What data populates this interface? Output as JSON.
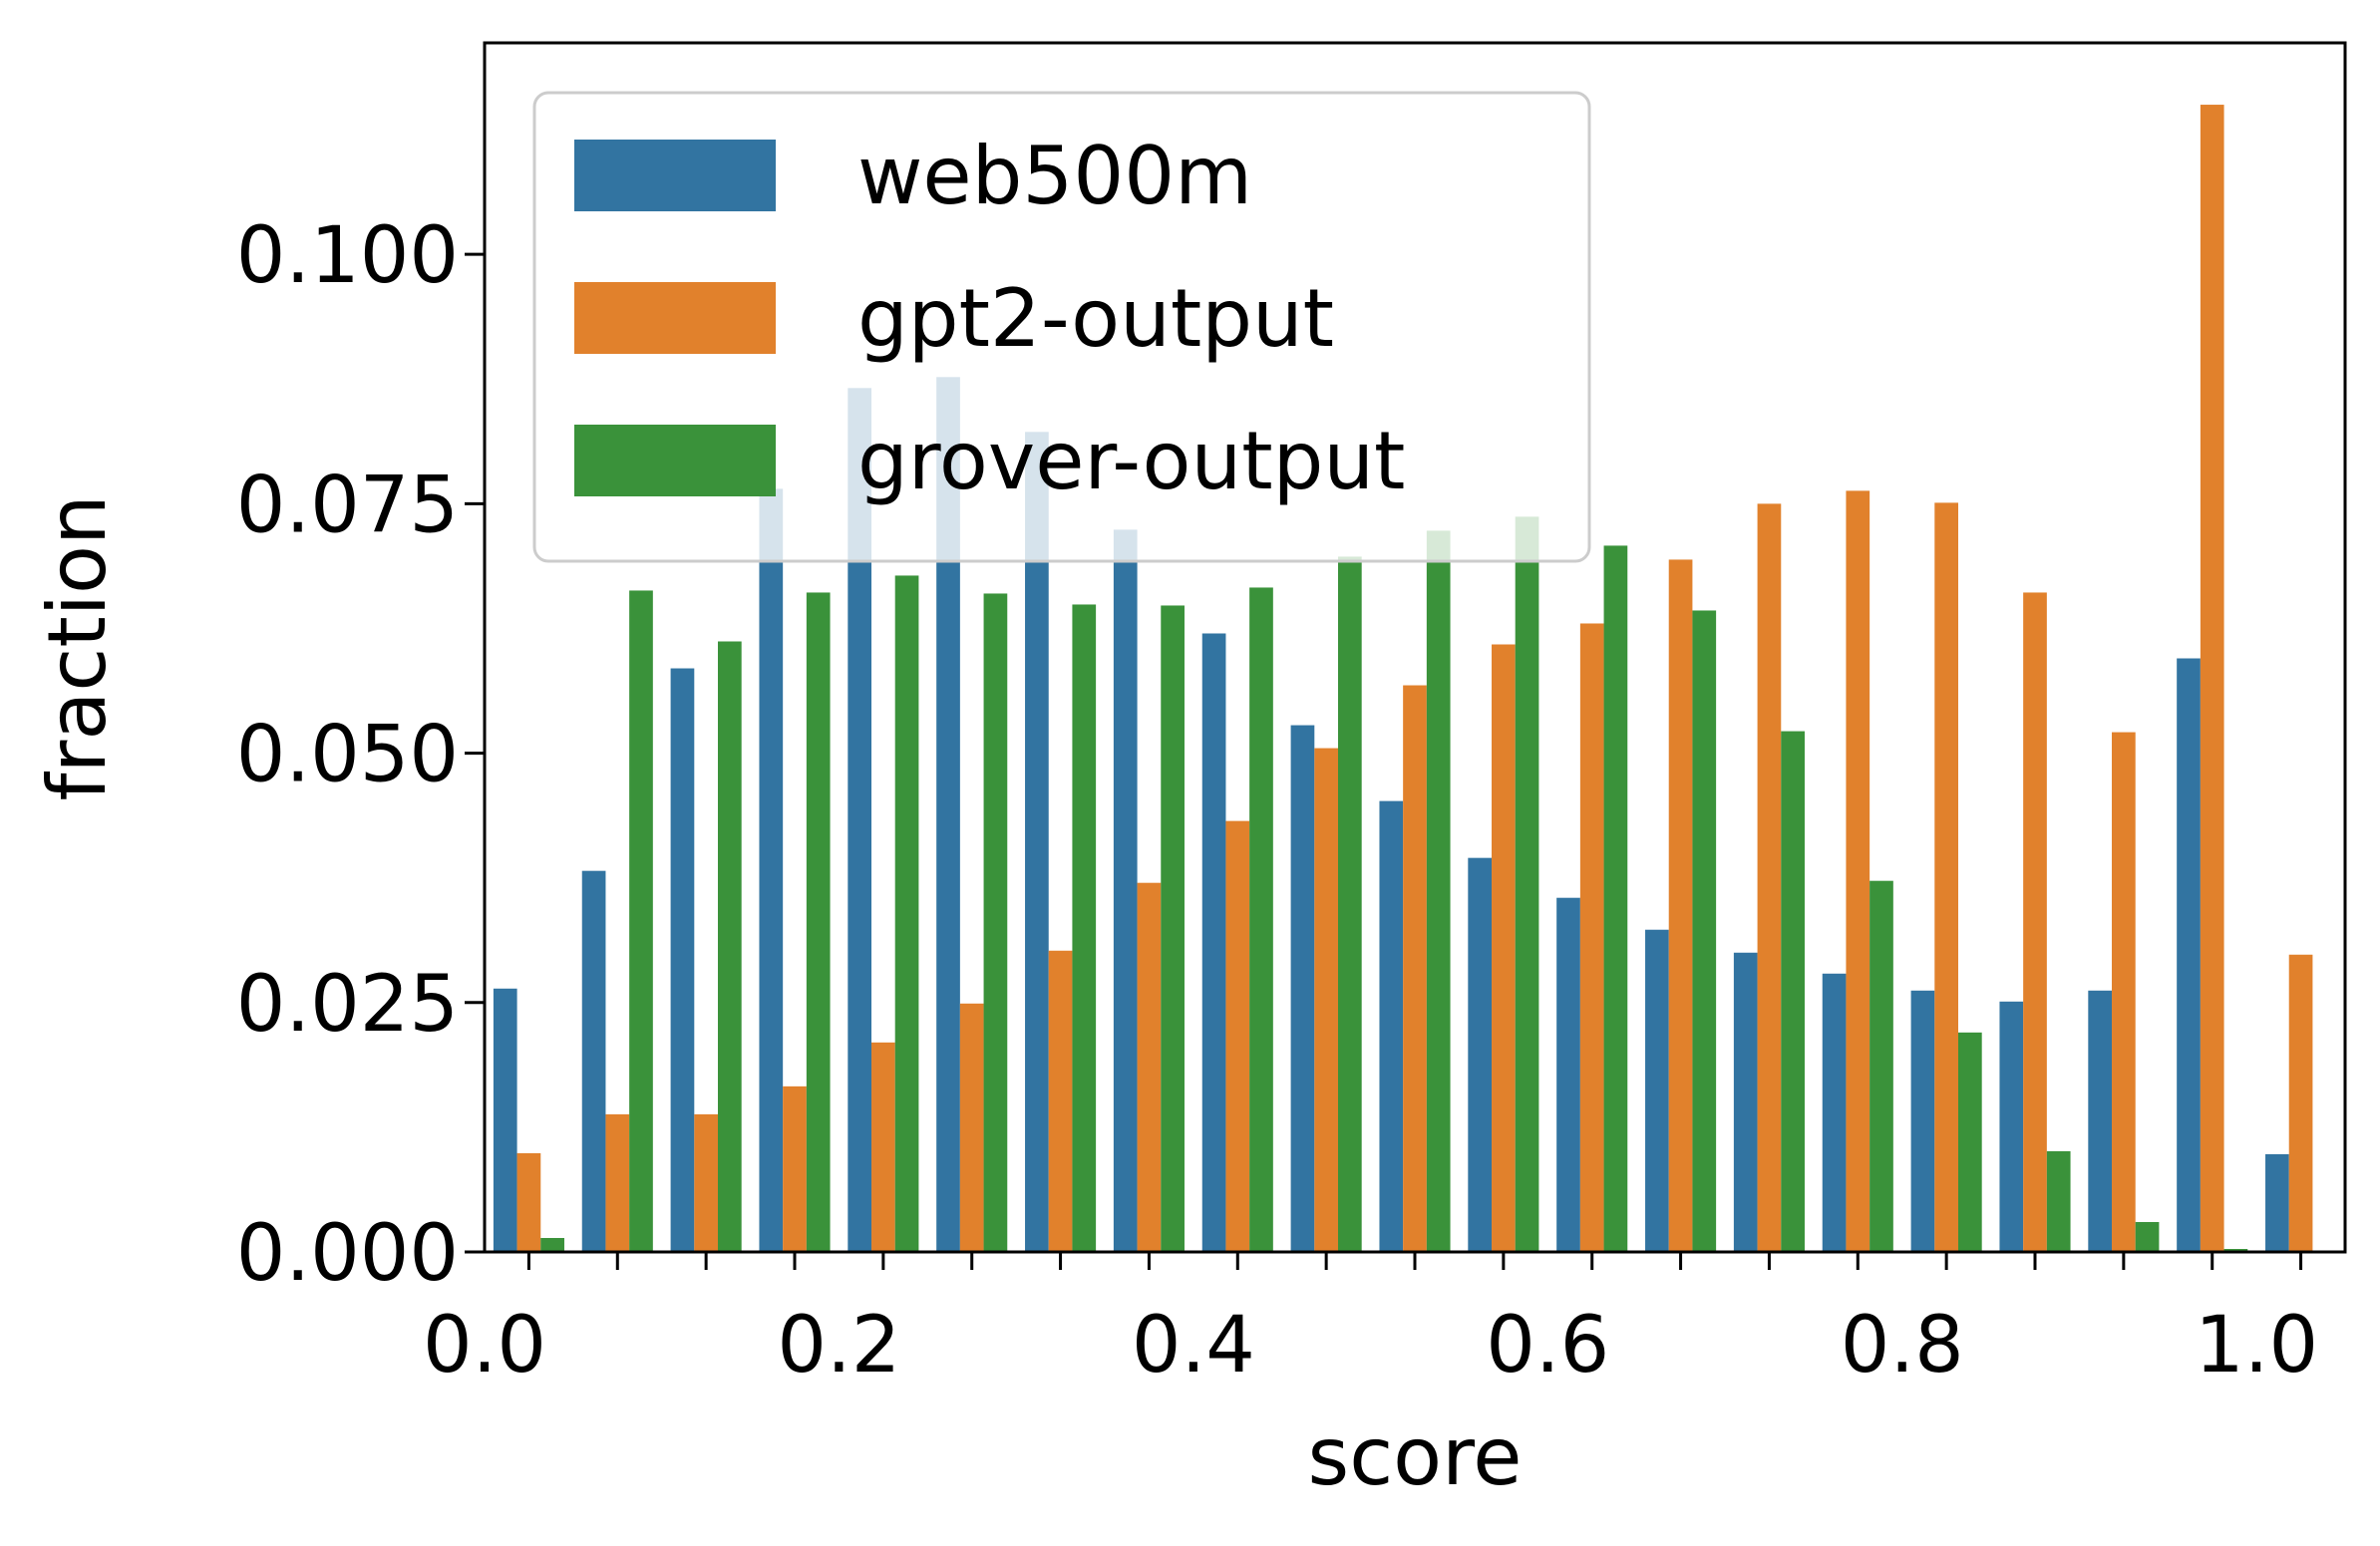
{
  "chart_data": {
    "type": "bar",
    "xlabel": "score",
    "ylabel": "fraction",
    "xlim": [
      0.0,
      1.05
    ],
    "ylim": [
      0.0,
      0.1212
    ],
    "x_ticks": [
      "0.0",
      "0.2",
      "0.4",
      "0.6",
      "0.8",
      "1.0"
    ],
    "y_ticks": [
      "0.000",
      "0.025",
      "0.050",
      "0.075",
      "0.100"
    ],
    "bin_count": 21,
    "bin_start": 0.0,
    "bin_width": 0.05,
    "grid": false,
    "legend_position": "upper-left",
    "series": [
      {
        "name": "web500m",
        "color": "#3274a1",
        "values": [
          0.0264,
          0.0382,
          0.0585,
          0.0765,
          0.0866,
          0.0877,
          0.0822,
          0.0724,
          0.062,
          0.0528,
          0.0452,
          0.0395,
          0.0355,
          0.0323,
          0.03,
          0.0279,
          0.0262,
          0.0251,
          0.0262,
          0.0595,
          0.0098
        ]
      },
      {
        "name": "gpt2-output",
        "color": "#e1812c",
        "values": [
          0.0099,
          0.0138,
          0.0138,
          0.0166,
          0.021,
          0.0249,
          0.0302,
          0.037,
          0.0432,
          0.0505,
          0.0568,
          0.0609,
          0.063,
          0.0694,
          0.075,
          0.0763,
          0.0751,
          0.0661,
          0.0521,
          0.115,
          0.0298
        ]
      },
      {
        "name": "grover-output",
        "color": "#3a923a",
        "values": [
          0.0014,
          0.0663,
          0.0612,
          0.0661,
          0.0678,
          0.066,
          0.0649,
          0.0648,
          0.0666,
          0.0697,
          0.0723,
          0.0737,
          0.0708,
          0.0643,
          0.0522,
          0.0372,
          0.022,
          0.0101,
          0.003,
          0.0003,
          0.0
        ]
      }
    ]
  }
}
